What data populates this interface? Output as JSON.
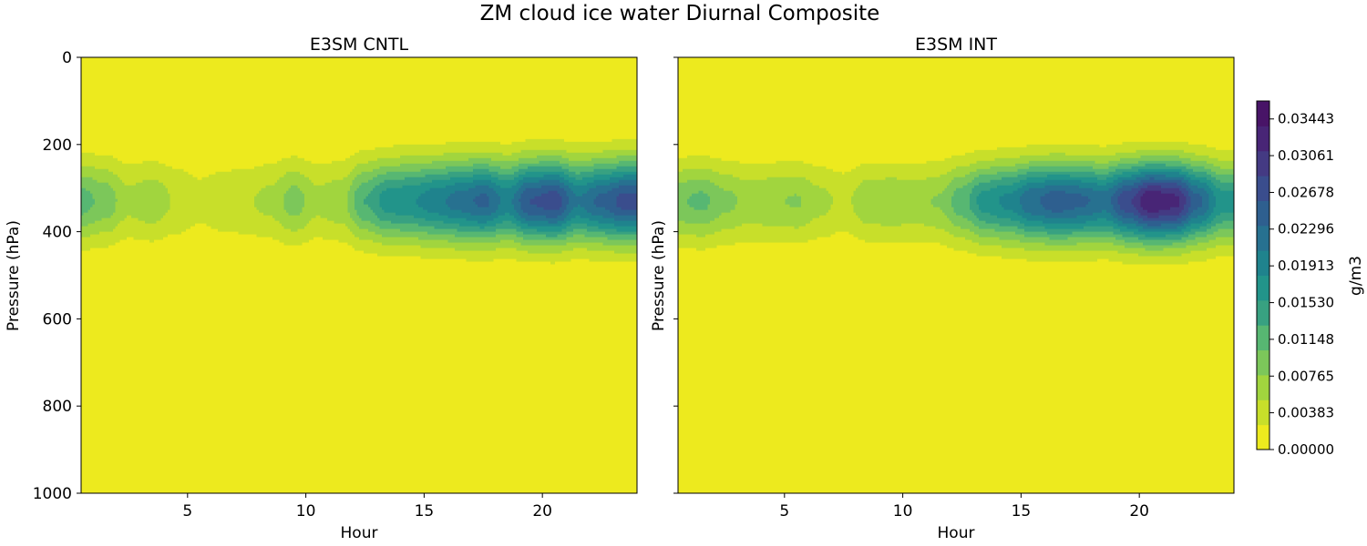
{
  "figure_title": "ZM cloud ice water Diurnal Composite",
  "colorbar": {
    "label": "g/m3",
    "tick_labels": [
      "0.00000",
      "0.00383",
      "0.00765",
      "0.01148",
      "0.01530",
      "0.01913",
      "0.02296",
      "0.02678",
      "0.03061",
      "0.03443"
    ],
    "colors": [
      "#edea1e",
      "#c8df2a",
      "#a1d53e",
      "#7cc75a",
      "#57b772",
      "#38a181",
      "#22948a",
      "#1f838d",
      "#277190",
      "#2e5f8f",
      "#3a4d8d",
      "#443a83",
      "#482576",
      "#481467"
    ]
  },
  "chart_data": [
    {
      "type": "heatmap",
      "title": "E3SM CNTL",
      "xlabel": "Hour",
      "ylabel": "Pressure (hPa)",
      "x_ticks": [
        5,
        10,
        15,
        20
      ],
      "x_tick_labels": [
        "5",
        "10",
        "15",
        "20"
      ],
      "y_ticks": [
        0,
        200,
        400,
        600,
        800,
        1000
      ],
      "y_tick_labels": [
        "0",
        "200",
        "400",
        "600",
        "800",
        "1000"
      ],
      "xlim": [
        0.5,
        24
      ],
      "ylim": [
        1000,
        0
      ],
      "levels_max": 0.0363,
      "layer_center_hpa": 330,
      "layer_top_hpa": 170,
      "layer_bottom_hpa": 490,
      "hours": [
        0.5,
        1.5,
        2.5,
        3.5,
        4.5,
        5.5,
        6.5,
        7.5,
        8.5,
        9.5,
        10.5,
        11.5,
        12.5,
        13.5,
        14.5,
        15.5,
        16.5,
        17.5,
        18.5,
        19.5,
        20.5,
        21.5,
        22.5,
        23.5
      ],
      "peak_values": [
        0.0115,
        0.0095,
        0.006,
        0.007,
        0.005,
        0.0035,
        0.0045,
        0.005,
        0.006,
        0.009,
        0.006,
        0.007,
        0.013,
        0.017,
        0.018,
        0.02,
        0.022,
        0.024,
        0.02,
        0.026,
        0.0275,
        0.021,
        0.024,
        0.027
      ]
    },
    {
      "type": "heatmap",
      "title": "E3SM INT",
      "xlabel": "Hour",
      "ylabel": "Pressure (hPa)",
      "x_ticks": [
        5,
        10,
        15,
        20
      ],
      "x_tick_labels": [
        "5",
        "10",
        "15",
        "20"
      ],
      "y_ticks": [
        0,
        200,
        400,
        600,
        800,
        1000
      ],
      "y_tick_labels": [],
      "xlim": [
        0.5,
        24
      ],
      "ylim": [
        1000,
        0
      ],
      "levels_max": 0.0363,
      "layer_center_hpa": 330,
      "layer_top_hpa": 180,
      "layer_bottom_hpa": 490,
      "hours": [
        0.5,
        1.5,
        2.5,
        3.5,
        4.5,
        5.5,
        6.5,
        7.5,
        8.5,
        9.5,
        10.5,
        11.5,
        12.5,
        13.5,
        14.5,
        15.5,
        16.5,
        17.5,
        18.5,
        19.5,
        20.5,
        21.5,
        22.5,
        23.5
      ],
      "peak_values": [
        0.01,
        0.011,
        0.0085,
        0.007,
        0.0075,
        0.008,
        0.006,
        0.0045,
        0.007,
        0.0075,
        0.007,
        0.008,
        0.012,
        0.017,
        0.019,
        0.023,
        0.025,
        0.024,
        0.022,
        0.028,
        0.0335,
        0.032,
        0.024,
        0.017
      ]
    }
  ]
}
